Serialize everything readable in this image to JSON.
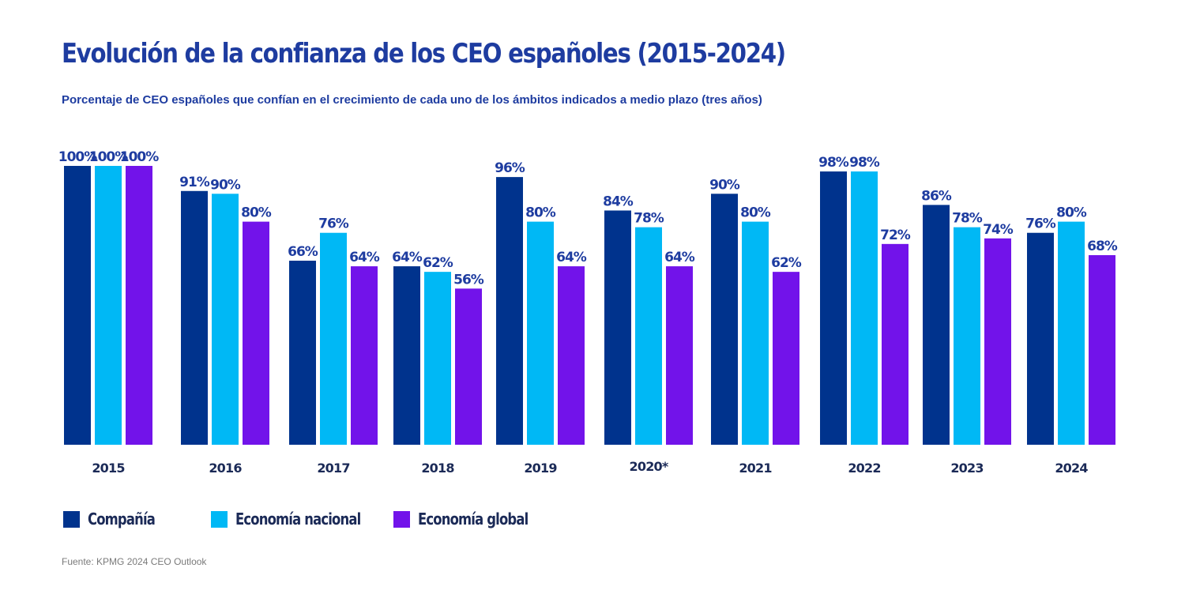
{
  "header": {
    "title": "Evolución de la confianza de los CEO españoles (2015-2024)",
    "subtitle": "Porcentaje de CEO españoles que confían en el crecimiento de cada uno de los ámbitos indicados a medio plazo (tres años)"
  },
  "chart_data": {
    "type": "bar",
    "categories": [
      "2015",
      "2016",
      "2017",
      "2018",
      "2019",
      "2020*",
      "2021",
      "2022",
      "2023",
      "2024"
    ],
    "series": [
      {
        "name": "Compañía",
        "color": "#00338d",
        "values": [
          100,
          91,
          66,
          64,
          96,
          84,
          90,
          98,
          86,
          76
        ]
      },
      {
        "name": "Economía nacional",
        "color": "#00b8f5",
        "values": [
          100,
          90,
          76,
          62,
          80,
          78,
          80,
          98,
          78,
          80
        ]
      },
      {
        "name": "Economía global",
        "color": "#7213ea",
        "values": [
          100,
          80,
          64,
          56,
          64,
          64,
          62,
          72,
          74,
          68
        ]
      }
    ],
    "value_suffix": "%",
    "ylim": [
      0,
      100
    ],
    "grid": false,
    "legend_position": "bottom-left",
    "label_color": "#1e3ca0"
  },
  "footer": {
    "source": "Fuente: KPMG 2024 CEO Outlook"
  }
}
